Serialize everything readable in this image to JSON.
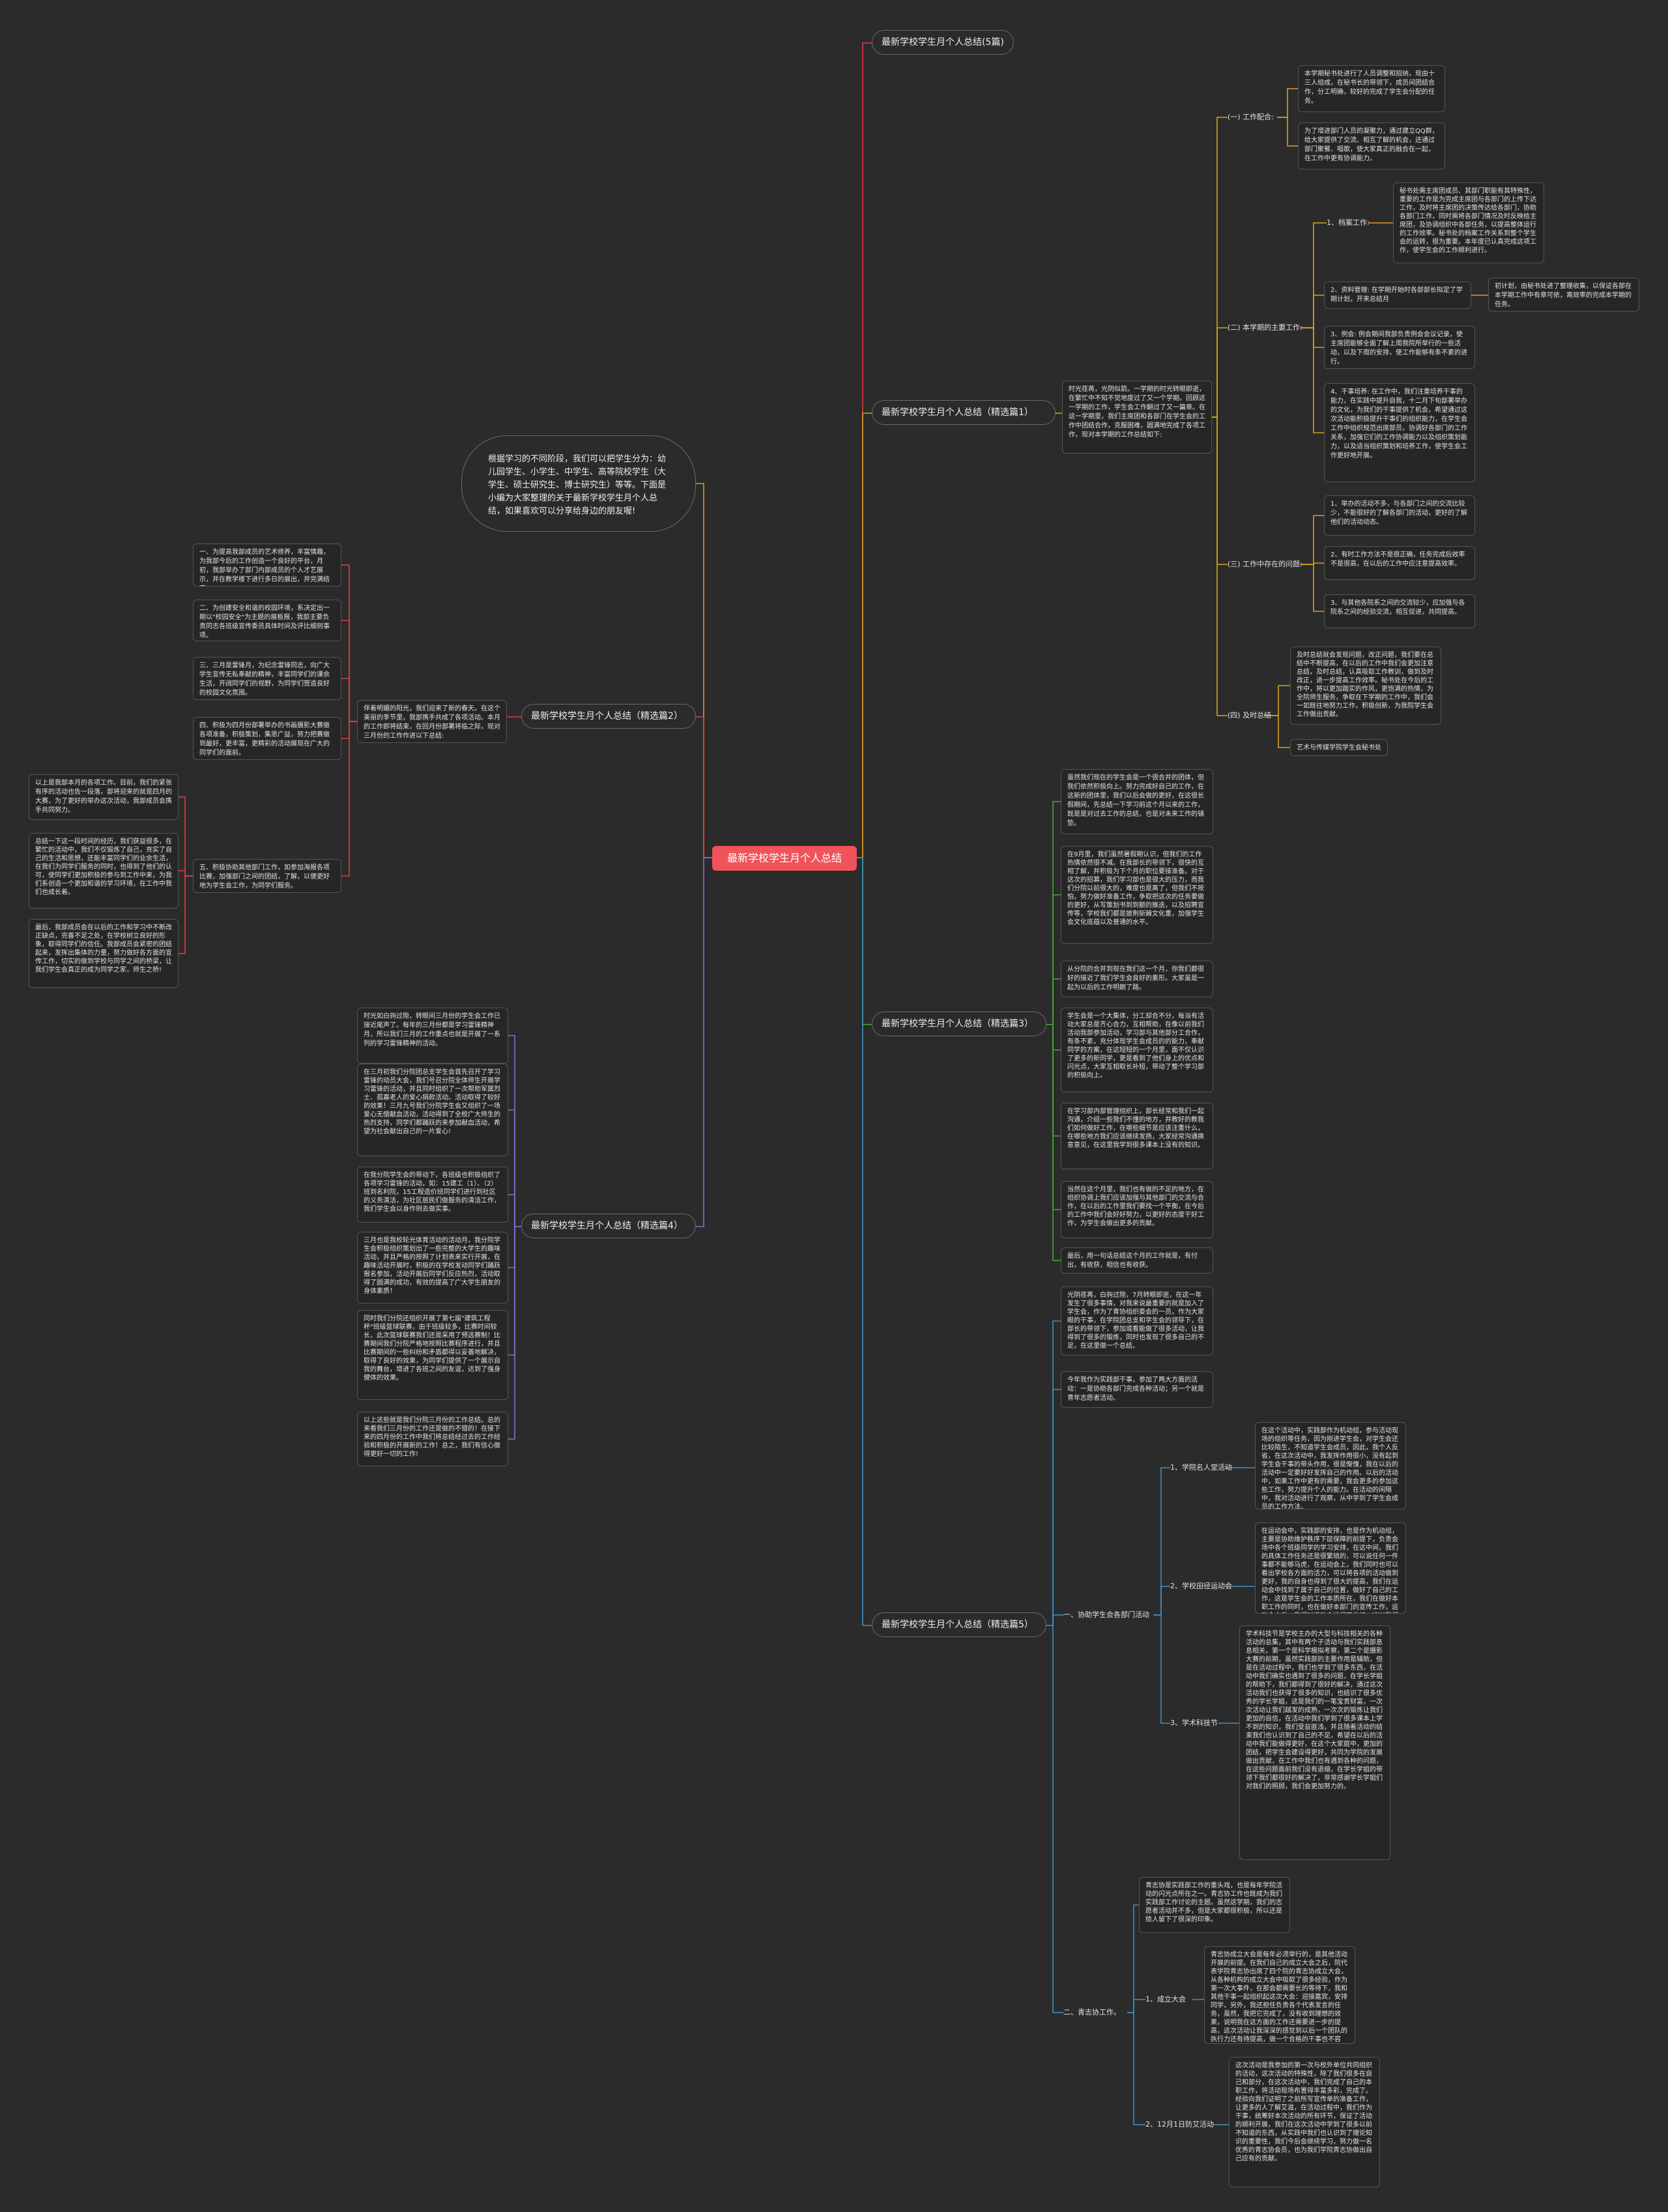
{
  "root": "最新学校学生月个人总结",
  "intro": "根据学习的不同阶段，我们可以把学生分为：幼儿园学生、小学生、中学生、高等院校学生（大学生、硕士研究生、博士研究生）等等。下面是小编为大家整理的关于最新学校学生月个人总结，如果喜欢可以分享给身边的朋友喔!",
  "colors": {
    "root": "#f0535a",
    "red": "#e8383f",
    "yellow": "#d8a21c",
    "purple": "#8a6bd1",
    "green": "#48a638",
    "blue": "#3f8fc2"
  },
  "branches": {
    "b0": "最新学校学生月个人总结(5篇)",
    "b1": "最新学校学生月个人总结（精选篇1）",
    "b2": "最新学校学生月个人总结（精选篇2）",
    "b3": "最新学校学生月个人总结（精选篇3）",
    "b4": "最新学校学生月个人总结（精选篇4）",
    "b5": "最新学校学生月个人总结（精选篇5）"
  },
  "b1": {
    "intro": "时光荏苒，光阴似箭。一学期的时光转眼即逝，在繁忙中不知不觉地度过了又一个学期。回顾这一学期的工作，学生会工作翻过了又一篇章。在这一学期里，我们主席团和各部门在学生会的工作中团结合作，克服困难，圆满地完成了各项工作，现对本学期的工作总结如下:",
    "s1": "(一) 工作配合:",
    "s1a": "本学期秘书处进行了人员调整和招纳，现由十三人组成，在秘书长的带领下，成员间团结合作，分工明确，较好的完成了学生会分配的任务。",
    "s1b": "为了增进部门人员的凝聚力，通过建立QQ群，给大家提供了交流、相互了解的机会，还通过部门聚餐、唱歌，使大家真正的融合在一起，在工作中更有协调能力。",
    "s2": "(二) 本学期的主要工作:",
    "s2a": "1、档案工作:",
    "s2a1": "秘书处需主席团成员、其部门职能有其特殊性，重要的工作是为完成主席团与各部门的上传下达工作，及时将主席团的决策传达给各部门，协助各部门工作，同时需将各部门情况及时反映给主席团，及协调组织中各部任务，以提高整体运行的工作效率。秘书处的档案工作关系到整个学生会的运转，很为重要。本年度已认真完成这项工作，使学生会的工作顺利进行。",
    "s2b": "2、资料管理: 在学期开始时各部部长拟定了学期计划，开来总结月",
    "s2b1": "初计划，由秘书处进了整理收集，以保证各部在本学期工作中有章可依，离效率的完成本学期的任务。",
    "s2c": "3、例会: 例会期间我部负责例会会议记录，使主席团能够全面了解上周我院所举行的一些活动，以及下周的安排，使工作能够有条不紊的进行。",
    "s2d": "4、干事培养: 在工作中，我们注重培养干事的能力，在实践中提升自我，十二月下旬部署举办的文化，为我们的干事提供了机会，希望通过这次活动能积极提升干事们的组织能力，在学生会工作中组织规范出席部员，协调好各部门的工作关系，加强它们的工作协调能力以及组织策划能力，以及适当组织策划和培养工作，使学生会工作更好地开展。",
    "s3": "(三) 工作中存在的问题:",
    "s3a": "1、举办的活动不多，与各部门之间的交流比较少，不能很好的了解各部门的活动，更好的了解他们的活动动态。",
    "s3b": "2、有时工作方法不是很正确，任务完成后效率不是很高，在以后的工作中应注意提高效率。",
    "s3c": "3、与其他各院系之间的交流较少，应加强与各院系之间的经验交流，相互促进，共同提高。",
    "s4": "(四) 及时总结",
    "s4a": "及时总结就会发现问题，改正问题，我们要在总结中不断提高，在以后的工作中我们会更加注意总结，及时总结，认真吸取工作教训，做到及时改正，进一步提高工作效率。秘书处在今后的工作中，将以更加踏实的作风，更饱满的热情，为全院师生服务，争取在下学期的工作中，我们会一如既往地努力工作，积极创新，为我院学生会工作做出贡献。",
    "s4b": "艺术与传媒学院学生会秘书处"
  },
  "b2": {
    "intro": "伴着明媚的阳光，我们迎来了新的春天。在这个美丽的季节里，我部携手共成了各项活动。本月的工作即将结束，在回月份部署将临之际，现对三月份的工作作进以下总结:",
    "a": "一、为提高我部成员的艺术修养，丰富情趣，为我部今后的工作创造一个良好的平台，月初，我部举办了部门内部成员的个人才艺展示，并在教学楼下进行多日的展出，并完满结束。",
    "b": "二、为创建安全和谐的校园环境，系决定出一期以\"校园安全\"为主题的展板报，我部主要负责同志各班级宣传委员具体时间及评比细则事项。",
    "c": "三、三月是雷锋月，为纪念雷锋同志，向广大学生宣传无私奉献的精神，丰富同学们的课余生活，开阔同学们的视野，为同学们营造良好的校园文化氛围。",
    "d": "四、积极为四月份部署举办的书画摄影大赛做各项准备，积极策划，集思广益，努力把赛做到最好，更丰富，更精彩的活动展现在广大的同学们的面前。",
    "e": "五、积极协助其他部门工作，如参加海报各项比赛，加强部门之间的团结，了解，以便更好地为学生会工作，为同学们服务。",
    "e1": "以上是我部本月的各项工作。目前，我们的紧张有序的活动也告一段落，部将迎来的就是四月的大赛，为了更好的举办这次活动，我部成员会携手共同努力。",
    "e2": "总结一下这一段时间的经历，我们获益很多，在繁忙的活动中，我们不仅锻炼了自己，充实了自己的生活和思想，还能丰富同学们的业余生活，在我们为同学们服务的同时，也得到了他们的认可，使同学们更加积极的参与到工作中来，为我们系创造一个更加和谐的学习环境，在工作中我们也成长着。",
    "e3": "最后，我部成员会在以后的工作和学习中不断改正缺点，完善不足之处，在学校树立良好的形象，取得同学们的信任。我部成员会紧密的团结起来，发挥出集体的力量，努力做好各方面的宣传工作，切实的做到学校与同学之间的桥梁，让我们学生会真正的成为同学之家，师生之桥!"
  },
  "b3": {
    "p1": "虽然我们现在的学生会是一个很合并的团体，但我们依然积极向上。努力完成好自己的工作，在这新的团体里，我们以后会做的更好，在这很长假期间，先总结一下学习前这个月以来的工作，既是是对过去工作的总结，也是对未来工作的铺垫。",
    "p2": "在9月里，我们虽然暑假期认识，但我们的工作热情依然很不减。在我部长的带领下，很快的互相了解，并积极为下个月的职位要接准备。对于这次的招募，我们学习部也是很大的压力，而我们分院以前很大的，难度也是离了，但我们不按怕，努力做好准备工作，争取把这次的任务要做的更好，从写策划书到到额的推迭，以及招聘宣传等，学校我们都是披荆斩棘文化重，加强学生会文化底蕴以及普通的水平。",
    "p3": "从分院的合并到现在我们这一个月，你我们都很好的接近了我们学生会良好的素形。大家虽是一起为以后的工作明朗了路。",
    "p4": "学生会是一个大集体，分工却合不分，每当有活动大家总是齐心合力，互相帮助，在像以前我们活动我部参加活动，学习部与其他部分工合作，有条不紊，充分体现学生会成员的的能力，奉献同学的方案，在这短短的一个月里，面不仅认识了更多的新同学，更是看到了他们身上的优点和闪光点，大家互相取长补短，带动了整个学习部的积极向上。",
    "p5": "在学习部内部管理组织上，部长经常和我们一起沟通，介绍一些我们不懂的地方，并教好的教我们如何做好工作，在哪些细节是应该注重什么，在哪些地方我们应该继续发扬，大家经常沟通换意意见，在这里我学到很多课本上没有的知识。",
    "p6": "当然在这个月里，我们也有做的不足的地方，在组织协调上我们应该加强与其他部门的交流与合作，在以后的工作里我们要找一个平衡，在今后的工作中我们会好好努力，以更好的态度干好工作，为学生会做出更多的贡献。",
    "p7": "最后，用一句话总结这个月的工作就是，有付出，有收获，相信也有收获。"
  },
  "b4": {
    "p1": "时光如白驹过隙，转眼间三月份的学生会工作已接近尾声了。每年的三月份都是学习雷锋精神月，所以我们三月的工作重点也就是开展了一系列的学习雷锋精神的活动。",
    "p2": "在三月初我们分院团总支学生会首先召开了学习雷锋的动员大会，我们号召分院全体师生开展学习雷锋的活动，并且同时组织了一次帮助军属烈士、孤寡老人的爱心捐款活动。活动取得了较好的效果！三月九号我们分院学生会又组织了一场爱心无偿献血活动，活动得到了全校广大师生的热烈支持，同学们都踊跃的来参加献血活动，希望为社会献出自己的一片爱心!",
    "p3": "在我分院学生会的带动下，各班级也积极组织了各项学习雷锋的活动，如：15建工（1）、（2）班到名利院，15工程造价班同学们进行到社区的义务清洁，为社区居民们做服务的清洁工作，我们学生会以身作则去做实事。",
    "p4": "三月也是我校轮光体育活动的活动月，我分院学生会积极组织策划出了一些完整的大学生的趣味活动，并且严格的按照了计划表来实行开展，在趣味活动开展时，积极的在学校发动同学们踊跃报名参加，活动开展后同学们反应热烈，活动取得了圆满的成功，有效的提高了广大学生朋友的身体素质！",
    "p5": "同时我们分院还组织开展了第七届\"建筑工程杯\"班级篮球联赛，由于班级较多，比赛时间较长，此次篮球联赛我们还是采用了预选赛制！比赛期间我们分院严格地按照比赛程序进行，并且比赛期间的一些纠纷和矛盾都得以妥善地解决，取得了良好的效果，为同学们提供了一个展示自我的舞台，增进了各班之间的友谊，达到了强身健体的效果。",
    "p6": "以上这些就是我们分院三月份的工作总结。总的来看我们三月份的工作还是做的不错的！在接下来的四月份的工作中我们将总结经过去的工作经验和积极的开展新的工作！总之，我们有信心做得更好一切的工作!"
  },
  "b5": {
    "p1": "光阴荏苒，白驹过隙，7月转眼即逝，在这一年发生了很多事情，对我来说最重要的就是加入了学生会，作为了青协组织委会的一员，作为大家眼的干事，在学院团总支和学生会的领导下，在部长的带领下，参加或看能做了很多活动，让我得到了很多的锻炼，同时也发现了很多自己的不足，在这里做一个总结。",
    "p2": "今年我作为实践部干事，参加了两大方面的活动：一是协助各部门完成各种活动；另一个就是青年志愿者活动。",
    "s1": "一、协助学生会各部门活动",
    "s1a": "1、学院名人堂活动",
    "s1a1": "在这个活动中，实践部作为机动组，参与活动现场的组织等任务，因为刚进学生会，对学生会还比较陌生，不知道学生会成员，因此，我个人反省，在这次活动中，我发挥作用很小，没有起到学生会干事的带头作用，很是惭愧，我在以后的活动中一定要好好发挥自己的作用。以后的活动中，如果工作中更有的需要，我会更多的参加这些工作，努力提升个人的能力。在活动的间隔中，我对活动进行了观察，从中学到了学生会成员的工作方法。",
    "s1b": "2、学校田径运动会",
    "s1b1": "在运动会中，实践部的安排，也是作为机动组，主要是协助维护秩序下层保障的前提下，负责会场中各个班级同学的学习安排，在这中间，我们的具体工作任务还是很繁琐的，可以说任何一件事都不能够马虎，在运动会上，我们同时也可以看出学校各方面的活力，可以将各项的活动做到更好，我的自身也得到了很大的提高，我们在运动会中找到了属于自己的位置，做好了自己的工作，这是学生会的工作本质所在，我们在做好本职工作的同时，也在做好本部门的宣传工作，运动会之后，我们对运动会进行了总结，这对我们来说是一个很好的学习机会，通过总结我们能够更好的了解自己的不足，在以后的工作中更好的改进。",
    "s1c": "3、学术科技节",
    "s1c1": "学术科技节是学校主办的大型与科技相关的各种活动的总集，其中有两个子活动与我们实践部息息相关，第一个是科学模拟考察，第二个是摄影大赛的前期，虽然实践部的主要作用是辅助，但是在活动过程中，我们也学到了很多东西，在活动中我们确实也遇到了很多的问题，在学长学姐的帮助下，我们都得到了很好的解决，通过这次活动我们也获得了很多的知识，也结识了很多优秀的学长学姐，这是我们的一笔宝贵财富，一次次活动让我们越发的成熟，一次次的锻炼让我们更加的自信，在活动中我们学到了很多课本上学不到的知识，我们受益匪浅，并且随着活动的结束我们也认识到了自己的不足，希望在以后的活动中我们能做得更好，在这个大家庭中，更加的团结，把学生会建设得更好，共同为学院的发展做出贡献，在工作中我们也有遇到各种的问题，在这些问题面前我们没有退缩，在学长学姐的带领下我们都很好的解决了，非常感谢学长学姐们对我们的照顾，我们会更加努力的。",
    "s2": "二、青志协工作。",
    "s2p": "青志协是实践部工作的重头戏，也是每年学院活动的闪光点所在之一。青志协工作也既成为我们实践部工作讨论的主题。虽然这学期，我们的志愿者活动并不多，但是大家都很积极，所以还是给人留下了很深的印象。",
    "s2a": "1、成立大会",
    "s2a1": "青志协成立大会是每年必须举行的，是其他活动开展的前提。在我们自己的成立大会之后，院代表学院青志协出席了四个院的青志协成立大会，从各种机构的成立大会中吸取了很多经验，作为第一次大事件，在那会都需要长的等待下，我和其他干事一起组织起这次大会：迎接嘉宾，安排同学，另外，我还担任负责各个代表发言的任务，虽然，我把它完成了，没有收到理想的效果，说明我在这方面的工作还需要进一步的提高，这次活动让我深深的感觉到以后一个团队的执行力还有待提高，做一个合格的干事也不容易，也再次感受到了团结的力量。",
    "s2b": "2、12月1日防艾活动",
    "s2b1": "这次活动是我参加的第一次与校外单位共同组织的活动，这次活动的特殊性，除了我们很多在自己和部分，在这次活动中，我们完成了自己的本职工作，将活动现场布置得丰富多彩，完成了。经验向我们证明了之前所写宣传单的准备工作，让更多的人了解艾滋，在活动过程中，我们作为干事，统筹好本次活动的所有环节，保证了活动的顺利开展，我们在这次活动中学到了很多以前不知道的东西，从实践中我们也认识到了理论知识的重要性，我们今后会继续学习，努力做一名优秀的青志协会员，也为我们学院青志协做出自己应有的贡献。"
  }
}
